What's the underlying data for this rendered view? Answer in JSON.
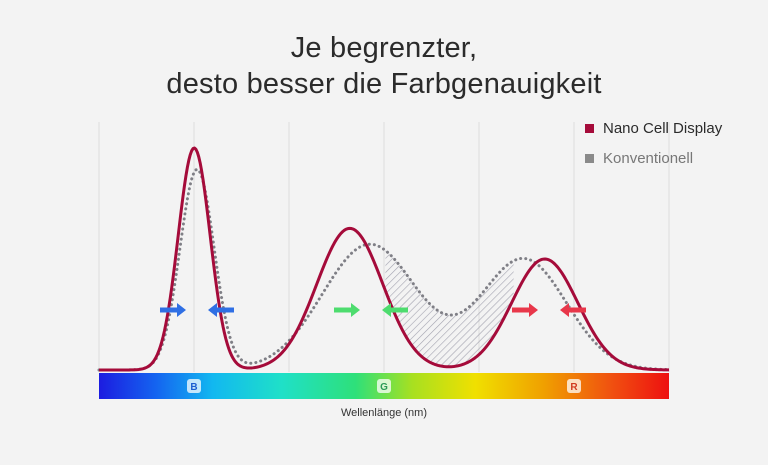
{
  "title": {
    "line1": "Je begrenzter,",
    "line2": "desto besser die Farbgenauigkeit"
  },
  "legend": {
    "items": [
      {
        "label": "Nano Cell Display",
        "color": "#a50b3a"
      },
      {
        "label": "Konventionell",
        "color": "#8a8a8a"
      }
    ]
  },
  "colors": {
    "nano": "#a50b3a",
    "conventional": "#7f7f86",
    "blue_arrow": "#2f6fe4",
    "green_arrow": "#4ddc6e",
    "red_arrow": "#e8374a",
    "hatch": "#9a9aa8"
  },
  "chart_data": {
    "type": "line",
    "xlabel": "Wellenlänge (nm)",
    "ylabel": "",
    "band_labels": [
      "B",
      "G",
      "R"
    ],
    "grid": true,
    "legend_position": "top-right",
    "series": [
      {
        "name": "Nano Cell Display",
        "style": "solid",
        "peaks": [
          {
            "band": "B",
            "x": 0.167,
            "height": 1.0,
            "width": 0.028
          },
          {
            "band": "G",
            "x": 0.44,
            "height": 0.638,
            "width": 0.058
          },
          {
            "band": "R",
            "x": 0.782,
            "height": 0.5,
            "width": 0.058
          }
        ]
      },
      {
        "name": "Konventionell",
        "style": "dotted",
        "peaks": [
          {
            "band": "B",
            "x": 0.172,
            "height": 0.903,
            "width": 0.03
          },
          {
            "band": "G",
            "x": 0.475,
            "height": 0.566,
            "width": 0.083
          },
          {
            "band": "R",
            "x": 0.745,
            "height": 0.5,
            "width": 0.075
          }
        ]
      }
    ]
  }
}
